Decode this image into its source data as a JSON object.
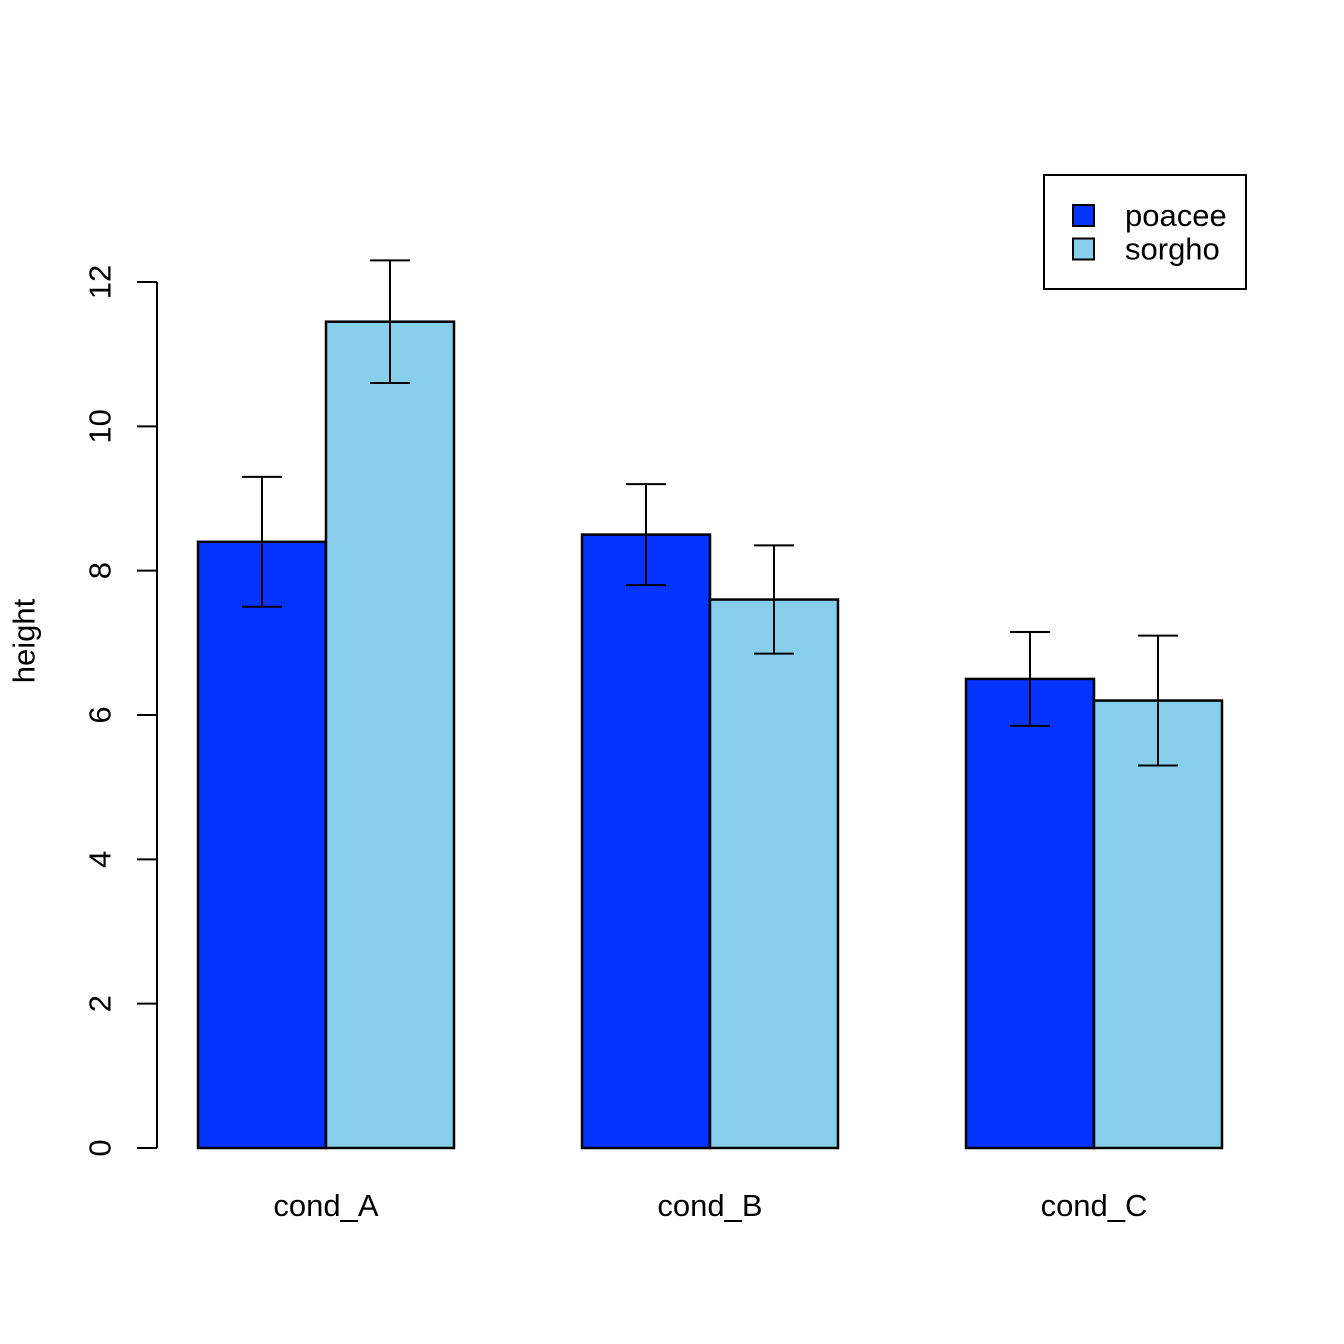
{
  "chart_data": {
    "type": "bar",
    "title": "",
    "xlabel": "",
    "ylabel": "height",
    "categories": [
      "cond_A",
      "cond_B",
      "cond_C"
    ],
    "series": [
      {
        "name": "poacee",
        "color": "#0533ff",
        "values": [
          8.4,
          8.5,
          6.5
        ],
        "error_low": [
          7.5,
          7.8,
          5.85
        ],
        "error_high": [
          9.3,
          9.2,
          7.15
        ]
      },
      {
        "name": "sorgho",
        "color": "#87ceeb",
        "values": [
          11.45,
          7.6,
          6.2
        ],
        "error_low": [
          10.6,
          6.85,
          5.3
        ],
        "error_high": [
          12.3,
          8.35,
          7.1
        ]
      }
    ],
    "ylim": [
      0,
      12
    ],
    "yticks": [
      0,
      2,
      4,
      6,
      8,
      10,
      12
    ],
    "grid": false,
    "error_bars": true,
    "legend": {
      "position": "top-right",
      "entries": [
        "poacee",
        "sorgho"
      ]
    },
    "colors": {
      "bar_border": "#000000",
      "axis": "#000000",
      "background": "#ffffff"
    }
  }
}
